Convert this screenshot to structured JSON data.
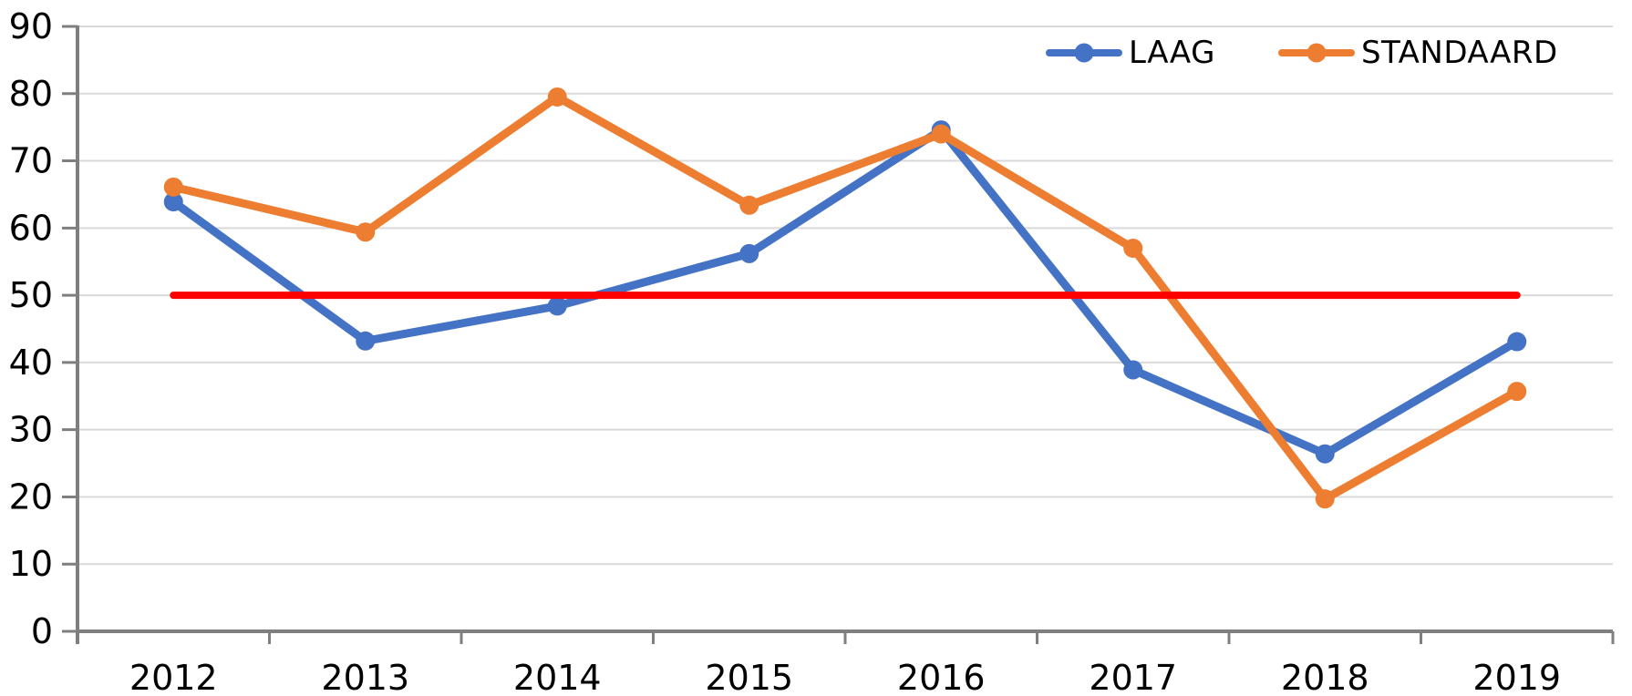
{
  "chart_data": {
    "type": "line",
    "title": "",
    "xlabel": "",
    "ylabel": "",
    "categories": [
      "2012",
      "2013",
      "2014",
      "2015",
      "2016",
      "2017",
      "2018",
      "2019"
    ],
    "series": [
      {
        "name": "LAAG",
        "color": "#4472C4",
        "values": [
          63.9,
          43.2,
          48.4,
          56.2,
          74.6,
          38.9,
          26.4,
          43.1
        ]
      },
      {
        "name": "STANDAARD",
        "color": "#ED7D31",
        "values": [
          66.1,
          59.4,
          79.5,
          63.4,
          74.0,
          57.0,
          19.7,
          35.7
        ]
      }
    ],
    "reference_line": {
      "value": 50,
      "color": "#FF0000"
    },
    "ylim": [
      0,
      90
    ],
    "ytick_step": 10,
    "grid": true,
    "legend_position": "top-right",
    "axis_color": "#7F7F7F",
    "gridline_color": "#D9D9D9",
    "text_color": "#000000",
    "background": "#FFFFFF"
  }
}
